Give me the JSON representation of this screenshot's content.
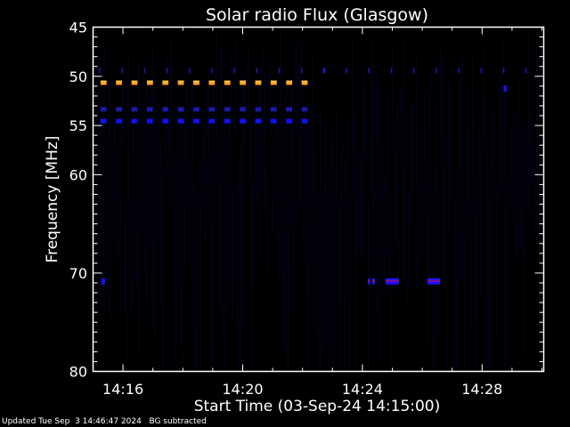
{
  "chart_data": {
    "type": "heatmap",
    "title": "Solar radio Flux (Glasgow)",
    "xlabel": "Start Time (03-Sep-24 14:15:00)",
    "ylabel": "Frequency [MHz]",
    "x_units": "minutes since 14:15:00",
    "xlim": [
      0,
      15.06
    ],
    "ylim": [
      80,
      45
    ],
    "x_ticks": [
      {
        "t": 1,
        "label": "14:16"
      },
      {
        "t": 5,
        "label": "14:20"
      },
      {
        "t": 9,
        "label": "14:24"
      },
      {
        "t": 13,
        "label": "14:28"
      }
    ],
    "y_ticks": [
      45,
      50,
      55,
      60,
      70,
      80
    ],
    "y_tick_labels": [
      "45",
      "50",
      "55",
      "60",
      "70",
      "80"
    ],
    "features": [
      {
        "name": "orange-dash-series",
        "freq": 50.7,
        "t_start": 0.25,
        "period": 0.517,
        "count": 14,
        "duration": 0.2,
        "color": "#ffa020"
      },
      {
        "name": "dim-blue-dash-series",
        "freq": 53.4,
        "t_start": 0.25,
        "period": 0.517,
        "count": 14,
        "duration": 0.2,
        "color": "#1a1aa8"
      },
      {
        "name": "blue-dash-series",
        "freq": 54.6,
        "t_start": 0.25,
        "period": 0.517,
        "count": 14,
        "duration": 0.2,
        "color": "#1010ff"
      }
    ],
    "bursts": [
      {
        "t0": 0.28,
        "t1": 0.4,
        "freq": 70.8,
        "color": "#2010ff"
      },
      {
        "t0": 9.18,
        "t1": 9.26,
        "freq": 70.8,
        "color": "#4010d0"
      },
      {
        "t0": 9.33,
        "t1": 9.42,
        "freq": 70.8,
        "color": "#4010d0"
      },
      {
        "t0": 9.78,
        "t1": 10.22,
        "freq": 70.8,
        "color": "#4010d0"
      },
      {
        "t0": 11.18,
        "t1": 11.59,
        "freq": 70.8,
        "color": "#4010d0"
      },
      {
        "t0": 13.72,
        "t1": 13.82,
        "freq": 51.2,
        "color": "#1a10e0"
      }
    ],
    "spike_band": {
      "freq": 49.5,
      "t_start": 0.2,
      "period": 0.75,
      "color": "#1818c0"
    },
    "colors": {
      "background": "#000000",
      "axes": "#ffffff"
    }
  },
  "footer": "Updated Tue Sep  3 14:46:47 2024   BG subtracted"
}
